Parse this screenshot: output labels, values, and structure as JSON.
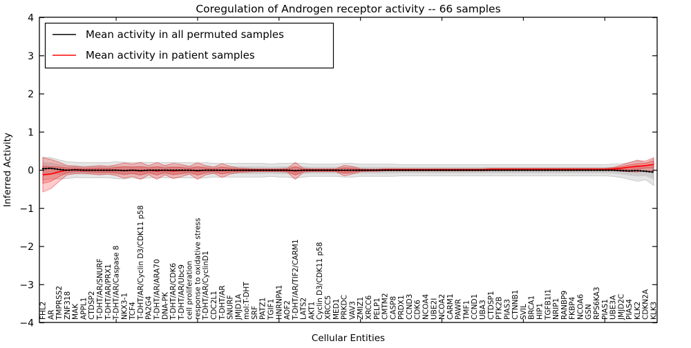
{
  "chart_data": {
    "type": "line",
    "title": "Coregulation of Androgen receptor activity -- 66 samples",
    "xlabel": "Cellular Entities",
    "ylabel": "Inferred Activity",
    "ylim": [
      -4,
      4
    ],
    "yticks": [
      -4,
      -3,
      -2,
      -1,
      0,
      1,
      2,
      3,
      4
    ],
    "ytick_labels": [
      "−4",
      "−3",
      "−2",
      "−1",
      "0",
      "1",
      "2",
      "3",
      "4"
    ],
    "grid": false,
    "legend_position": "upper left",
    "background_color": "#ffffff",
    "frame_color": "#000000",
    "categories": [
      "FHL2",
      "AR",
      "TMPRSS2",
      "ZNF318",
      "MAK",
      "APPL1",
      "CTDSP2",
      "T-DHT/AR/SNURF",
      "T-DHT/AR/PRX1",
      "T-DHT/AR/Caspase 8",
      "NKX3-1",
      "TCF4",
      "T-DHT/AR/Cyclin D3/CDK11 p58",
      "PA2G4",
      "T-DHT/AR/ARA70",
      "DNA-PK",
      "T-DHT/AR/CDK6",
      "T-DHT/AR/Ubc9",
      "cell proliferation",
      "response to oxidative stress",
      "T-DHT/AR/CyclinD1",
      "CDC2L1",
      "T-DHT/AR",
      "SNURF",
      "JMJD1A",
      "mol:T-DHT",
      "SRF",
      "PATZ1",
      "TGIF1",
      "HNRNPA1",
      "AOF2",
      "T-DHT/AR/TIF2/CARM1",
      "LATS2",
      "AKT1",
      "Cyclin D3/CDK11 p58",
      "XRCC5",
      "MED1",
      "PRKDC",
      "VAV3",
      "ZMIZ1",
      "XRCC6",
      "PELP1",
      "CMTM2",
      "CASP8",
      "PRDX1",
      "CCND3",
      "CDK6",
      "NCOA4",
      "UBE2I",
      "NCOA2",
      "CARM1",
      "PAWR",
      "TMF1",
      "CCND1",
      "UBA3",
      "CTDSP1",
      "PTK2B",
      "PIAS3",
      "CTNNB1",
      "SVIL",
      "BRCA1",
      "HIP1",
      "TGFB1I1",
      "NRIP1",
      "RANBP9",
      "FKBP4",
      "NCOA6",
      "GSN",
      "RPS6KA3",
      "PIAS1",
      "UBE3A",
      "JMJD2C",
      "PIAS4",
      "KLK2",
      "CDKN2A",
      "KLK3"
    ],
    "series": [
      {
        "name": "Mean activity in all permuted samples",
        "color": "#000000",
        "band_fill": "rgba(0,0,0,0.10)",
        "band_edge": "rgba(0,0,0,0.18)",
        "values": [
          0.04,
          0.05,
          0.02,
          0.0,
          0.01,
          0.0,
          0.0,
          0.0,
          0.0,
          0.0,
          -0.01,
          0.0,
          -0.01,
          0.0,
          0.0,
          0.0,
          0.0,
          0.0,
          0.0,
          -0.01,
          0.0,
          0.0,
          0.0,
          0.0,
          0.0,
          0.0,
          0.0,
          0.0,
          0.0,
          0.0,
          0.0,
          -0.01,
          0.0,
          0.0,
          0.0,
          0.0,
          0.0,
          0.0,
          0.0,
          0.0,
          0.0,
          0.0,
          0.0,
          0.0,
          0.0,
          0.0,
          0.0,
          0.0,
          0.0,
          0.0,
          0.0,
          0.0,
          0.0,
          0.0,
          0.0,
          0.0,
          0.0,
          0.0,
          0.0,
          0.0,
          0.0,
          0.0,
          0.0,
          0.0,
          0.0,
          0.0,
          0.0,
          0.0,
          0.0,
          0.0,
          0.0,
          -0.01,
          -0.02,
          -0.01,
          -0.03,
          -0.05
        ],
        "band_halfwidth": [
          0.3,
          0.28,
          0.25,
          0.22,
          0.2,
          0.2,
          0.2,
          0.2,
          0.2,
          0.22,
          0.22,
          0.2,
          0.22,
          0.2,
          0.2,
          0.2,
          0.2,
          0.2,
          0.2,
          0.2,
          0.2,
          0.18,
          0.18,
          0.18,
          0.18,
          0.18,
          0.18,
          0.18,
          0.16,
          0.18,
          0.18,
          0.2,
          0.18,
          0.16,
          0.16,
          0.16,
          0.16,
          0.18,
          0.18,
          0.16,
          0.16,
          0.16,
          0.16,
          0.16,
          0.15,
          0.15,
          0.15,
          0.15,
          0.15,
          0.15,
          0.15,
          0.15,
          0.15,
          0.15,
          0.15,
          0.15,
          0.15,
          0.15,
          0.15,
          0.15,
          0.15,
          0.15,
          0.15,
          0.15,
          0.15,
          0.15,
          0.15,
          0.15,
          0.15,
          0.15,
          0.16,
          0.18,
          0.22,
          0.28,
          0.22,
          0.35
        ]
      },
      {
        "name": "Mean activity in patient samples",
        "color": "#ff0000",
        "band_fill": "rgba(255,0,0,0.20)",
        "band_edge": "rgba(220,0,0,0.45)",
        "values": [
          -0.12,
          -0.1,
          -0.04,
          0.0,
          0.01,
          0.0,
          0.0,
          0.0,
          0.0,
          0.0,
          -0.01,
          0.0,
          -0.02,
          0.0,
          -0.02,
          0.0,
          -0.02,
          -0.01,
          0.0,
          -0.02,
          0.0,
          0.0,
          -0.01,
          0.0,
          0.0,
          0.0,
          0.0,
          0.0,
          0.0,
          0.0,
          0.0,
          -0.02,
          0.0,
          0.0,
          0.0,
          0.0,
          0.0,
          -0.01,
          0.0,
          0.0,
          0.0,
          0.0,
          0.01,
          0.01,
          0.01,
          0.01,
          0.01,
          0.01,
          0.01,
          0.01,
          0.01,
          0.01,
          0.01,
          0.01,
          0.01,
          0.02,
          0.02,
          0.02,
          0.02,
          0.02,
          0.02,
          0.02,
          0.02,
          0.02,
          0.02,
          0.02,
          0.02,
          0.02,
          0.02,
          0.02,
          0.03,
          0.05,
          0.08,
          0.1,
          0.12,
          0.15
        ],
        "band_halfwidth": [
          0.45,
          0.38,
          0.25,
          0.12,
          0.1,
          0.08,
          0.1,
          0.12,
          0.1,
          0.14,
          0.2,
          0.16,
          0.22,
          0.12,
          0.22,
          0.12,
          0.2,
          0.16,
          0.1,
          0.22,
          0.12,
          0.08,
          0.18,
          0.1,
          0.06,
          0.05,
          0.04,
          0.04,
          0.04,
          0.04,
          0.05,
          0.22,
          0.05,
          0.04,
          0.04,
          0.04,
          0.04,
          0.14,
          0.1,
          0.04,
          0.03,
          0.03,
          0.03,
          0.03,
          0.03,
          0.03,
          0.03,
          0.03,
          0.03,
          0.03,
          0.03,
          0.03,
          0.03,
          0.03,
          0.03,
          0.03,
          0.03,
          0.03,
          0.03,
          0.03,
          0.03,
          0.03,
          0.03,
          0.03,
          0.03,
          0.03,
          0.03,
          0.03,
          0.03,
          0.03,
          0.04,
          0.08,
          0.12,
          0.15,
          0.12,
          0.18
        ]
      }
    ]
  }
}
